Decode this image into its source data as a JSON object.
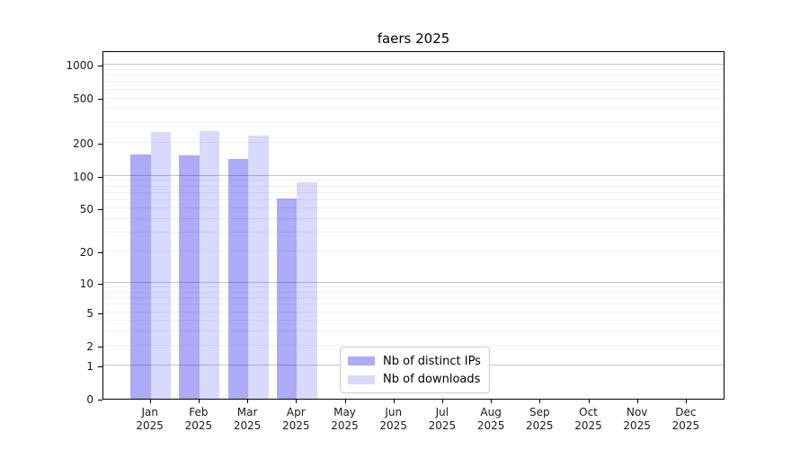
{
  "chart_data": {
    "type": "bar",
    "title": "faers 2025",
    "categories": [
      {
        "month": "Jan",
        "year": "2025"
      },
      {
        "month": "Feb",
        "year": "2025"
      },
      {
        "month": "Mar",
        "year": "2025"
      },
      {
        "month": "Apr",
        "year": "2025"
      },
      {
        "month": "May",
        "year": "2025"
      },
      {
        "month": "Jun",
        "year": "2025"
      },
      {
        "month": "Jul",
        "year": "2025"
      },
      {
        "month": "Aug",
        "year": "2025"
      },
      {
        "month": "Sep",
        "year": "2025"
      },
      {
        "month": "Oct",
        "year": "2025"
      },
      {
        "month": "Nov",
        "year": "2025"
      },
      {
        "month": "Dec",
        "year": "2025"
      }
    ],
    "series": [
      {
        "name": "Nb of distinct IPs",
        "color": "rgba(0,0,230,0.33)",
        "solid_hex": "#aaaaf4",
        "values": [
          156,
          152,
          142,
          62,
          null,
          null,
          null,
          null,
          null,
          null,
          null,
          null
        ]
      },
      {
        "name": "Nb of downloads",
        "color": "rgba(0,0,230,0.15)",
        "solid_hex": "#d9d9fb",
        "values": [
          250,
          254,
          231,
          88,
          null,
          null,
          null,
          null,
          null,
          null,
          null,
          null
        ]
      }
    ],
    "y_axis": {
      "scale": "log10(value+1)",
      "ylim": [
        0,
        1350
      ],
      "ticks": [
        1000,
        500,
        200,
        100,
        50,
        20,
        10,
        5,
        2,
        1,
        0
      ],
      "major_gridlines": [
        1,
        10,
        100,
        1000
      ],
      "minor_gridlines": [
        2,
        3,
        4,
        5,
        6,
        7,
        8,
        9,
        20,
        30,
        40,
        50,
        60,
        70,
        80,
        90,
        200,
        300,
        400,
        500,
        600,
        700,
        800,
        900
      ]
    },
    "grid": {
      "major_color": "#c4c4c4",
      "minor_color": "#f0f0f0"
    },
    "legend_position": "inside-bottom-center"
  }
}
